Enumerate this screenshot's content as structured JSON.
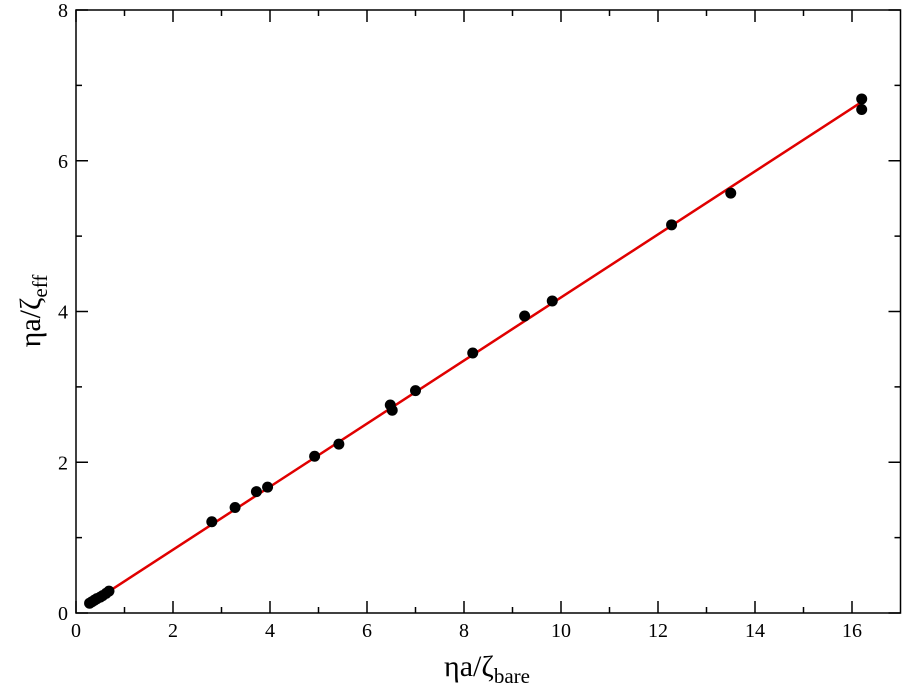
{
  "chart_data": {
    "type": "scatter",
    "xlabel": {
      "text": "ηa/ζ",
      "subscript": "bare"
    },
    "ylabel": {
      "text": "ηa/ζ",
      "subscript": "eff"
    },
    "xlim": [
      0,
      17
    ],
    "ylim": [
      0,
      8
    ],
    "xticks": [
      0,
      2,
      4,
      6,
      8,
      10,
      12,
      14,
      16
    ],
    "yticks": [
      0,
      2,
      4,
      6,
      8
    ],
    "xminorticks": [
      1,
      3,
      5,
      7,
      9,
      11,
      13,
      15
    ],
    "yminorticks": [
      1,
      3,
      5,
      7
    ],
    "series": [
      {
        "type": "scatter",
        "color": "#000000",
        "x": [
          0.28,
          0.33,
          0.38,
          0.43,
          0.5,
          0.55,
          0.62,
          0.68,
          2.8,
          3.28,
          3.72,
          3.95,
          4.92,
          5.42,
          6.48,
          6.52,
          7.0,
          8.18,
          9.25,
          9.82,
          12.28,
          13.5,
          16.2,
          16.2
        ],
        "values": [
          0.13,
          0.15,
          0.17,
          0.19,
          0.21,
          0.23,
          0.26,
          0.29,
          1.21,
          1.4,
          1.61,
          1.67,
          2.08,
          2.24,
          2.76,
          2.69,
          2.95,
          3.45,
          3.94,
          4.14,
          5.15,
          5.57,
          6.82,
          6.68
        ]
      },
      {
        "type": "line",
        "color": "#e00000",
        "x": [
          0.28,
          16.2
        ],
        "values": [
          0.12,
          6.78
        ]
      }
    ]
  }
}
